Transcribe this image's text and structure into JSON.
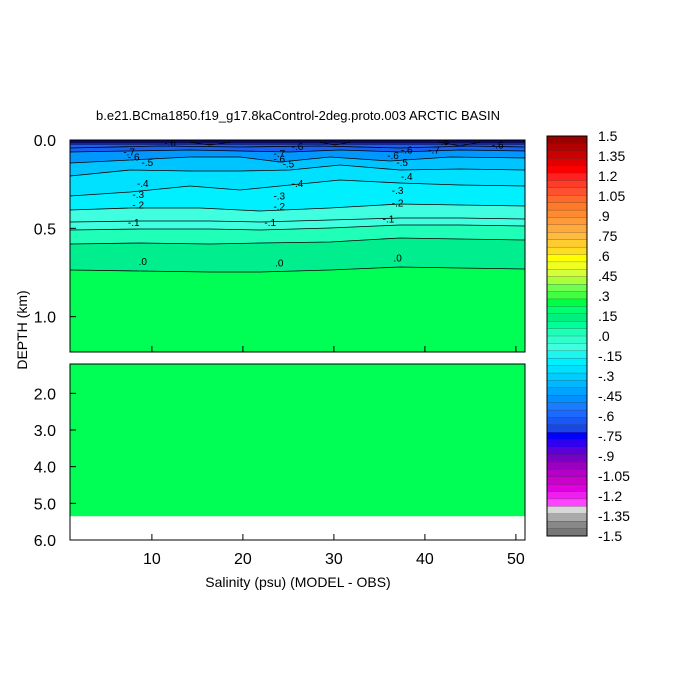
{
  "chart_data": {
    "type": "heatmap",
    "title": "b.e21.BCma1850.f19_g17.8kaControl-2deg.proto.003 ARCTIC BASIN",
    "xlabel": "Salinity (psu) (MODEL - OBS)",
    "ylabel": "DEPTH (km)",
    "xlim": [
      1,
      51
    ],
    "x_ticks": [
      "10",
      "20",
      "30",
      "40",
      "50"
    ],
    "upper_panel": {
      "ylim": [
        0.0,
        1.2
      ],
      "y_ticks": [
        "0.0",
        "0.5",
        "1.0"
      ]
    },
    "lower_panel": {
      "ylim": [
        1.2,
        6.0
      ],
      "y_ticks": [
        "2.0",
        "3.0",
        "4.0",
        "5.0",
        "6.0"
      ],
      "data_bottom_depth_km": 5.35
    },
    "contour_labels": [
      {
        "text": "-.6",
        "x": 12,
        "depth": 0.02
      },
      {
        "text": "-.7",
        "x": 7.5,
        "depth": 0.07
      },
      {
        "text": "-.6",
        "x": 8,
        "depth": 0.1
      },
      {
        "text": "-.5",
        "x": 9.5,
        "depth": 0.13
      },
      {
        "text": "-.4",
        "x": 9,
        "depth": 0.25
      },
      {
        "text": "-.3",
        "x": 8.5,
        "depth": 0.31
      },
      {
        "text": "-.2",
        "x": 8.5,
        "depth": 0.37
      },
      {
        "text": "-.1",
        "x": 8,
        "depth": 0.47
      },
      {
        "text": ".0",
        "x": 9,
        "depth": 0.69
      },
      {
        "text": "-.6",
        "x": 26,
        "depth": 0.04
      },
      {
        "text": "-.7",
        "x": 24,
        "depth": 0.08
      },
      {
        "text": "-.6",
        "x": 24,
        "depth": 0.11
      },
      {
        "text": "-.5",
        "x": 25,
        "depth": 0.14
      },
      {
        "text": "-.4",
        "x": 26,
        "depth": 0.25
      },
      {
        "text": "-.3",
        "x": 24,
        "depth": 0.32
      },
      {
        "text": "-.2",
        "x": 24,
        "depth": 0.38
      },
      {
        "text": "-.1",
        "x": 23,
        "depth": 0.47
      },
      {
        "text": ".0",
        "x": 24,
        "depth": 0.7
      },
      {
        "text": "-.6",
        "x": 38,
        "depth": 0.06
      },
      {
        "text": "-.7",
        "x": 41,
        "depth": 0.06
      },
      {
        "text": "-.6",
        "x": 36.5,
        "depth": 0.09
      },
      {
        "text": "-.5",
        "x": 37.5,
        "depth": 0.13
      },
      {
        "text": "-.4",
        "x": 38,
        "depth": 0.21
      },
      {
        "text": "-.3",
        "x": 37,
        "depth": 0.29
      },
      {
        "text": "-.2",
        "x": 37,
        "depth": 0.36
      },
      {
        "text": "-.1",
        "x": 36,
        "depth": 0.45
      },
      {
        "text": ".0",
        "x": 37,
        "depth": 0.67
      },
      {
        "text": "-.5",
        "x": 42,
        "depth": 0.01
      },
      {
        "text": "-.6",
        "x": 48,
        "depth": 0.03
      }
    ],
    "colorbar": {
      "labels": [
        "1.5",
        "1.35",
        "1.2",
        "1.05",
        ".9",
        ".75",
        ".6",
        ".45",
        ".3",
        ".15",
        ".0",
        "-.15",
        "-.3",
        "-.45",
        "-.6",
        "-.75",
        "-.9",
        "-1.05",
        "-1.2",
        "-1.35",
        "-1.5"
      ],
      "colors": [
        "#990000",
        "#b30000",
        "#cc0000",
        "#e00000",
        "#ff0000",
        "#ff2020",
        "#ff3c28",
        "#ff5030",
        "#ff6a2a",
        "#ff7a28",
        "#ff8a30",
        "#ff9a38",
        "#ffaa3c",
        "#ffbb40",
        "#ffcc30",
        "#ffdd20",
        "#ffff00",
        "#f0ff20",
        "#d4ff3a",
        "#a8ff3a",
        "#70ff50",
        "#40ff40",
        "#00ff44",
        "#00ff70",
        "#00f07e",
        "#00ff9a",
        "#20ffb8",
        "#30ffcc",
        "#40ffe0",
        "#20f4ee",
        "#00f0ff",
        "#00e0ff",
        "#00ccff",
        "#00b8ff",
        "#00a4ff",
        "#0090ff",
        "#1a7cff",
        "#1a6aff",
        "#1a58f6",
        "#1a46e6",
        "#0000ff",
        "#3000ee",
        "#5a00d8",
        "#7a00c8",
        "#9a00c0",
        "#b400c8",
        "#cc00cc",
        "#e000e0",
        "#ee20ee",
        "#ff44ff",
        "#d8d8d8",
        "#aaaaaa",
        "#888888",
        "#777777"
      ]
    }
  }
}
